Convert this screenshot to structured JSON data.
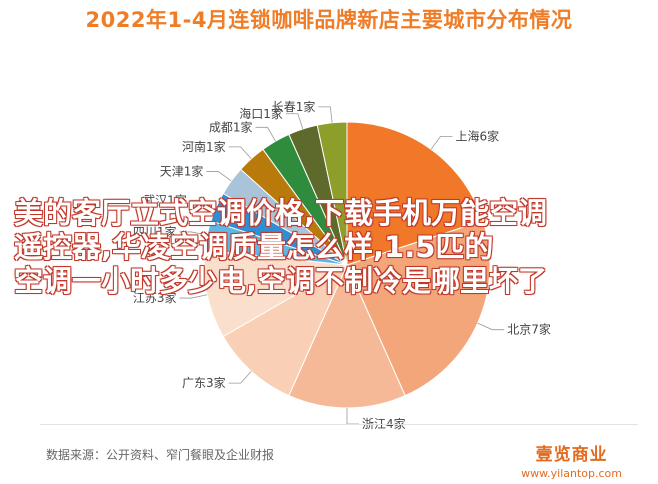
{
  "title": "2022年1-4月连锁咖啡品牌新店主要城市分布情况",
  "overlay_lines": [
    "美的客厅立式空调价格,下载手机万能空调",
    "遥控器,华凌空调质量怎么样,1.5匹的",
    "空调一小时多少电,空调不制冷是哪里坏了"
  ],
  "source": "数据来源：公开资料、窄门餐眼及企业财报",
  "brand": {
    "name": "壹览商业",
    "url": "www.yilantop.com"
  },
  "chart_data": {
    "type": "pie",
    "unit": "家",
    "slices": [
      {
        "label": "上海6家",
        "city": "上海",
        "value": 6,
        "color": "#f07828"
      },
      {
        "label": "北京7家",
        "city": "北京",
        "value": 7,
        "color": "#f3a679"
      },
      {
        "label": "浙江4家",
        "city": "浙江",
        "value": 4,
        "color": "#f6b998"
      },
      {
        "label": "广东3家",
        "city": "广东",
        "value": 3,
        "color": "#f9cfb6"
      },
      {
        "label": "江苏3家",
        "city": "江苏",
        "value": 3,
        "color": "#fbdfcd"
      },
      {
        "label": "四川1家",
        "city": "四川",
        "value": 1,
        "color": "#5fb7e6"
      },
      {
        "label": "武汉1家",
        "city": "武汉",
        "value": 1,
        "color": "#2e8fd6"
      },
      {
        "label": "天津1家",
        "city": "天津",
        "value": 1,
        "color": "#a9c3d9"
      },
      {
        "label": "河南1家",
        "city": "河南",
        "value": 1,
        "color": "#b77a0b"
      },
      {
        "label": "成都1家",
        "city": "成都",
        "value": 1,
        "color": "#2f8c3c"
      },
      {
        "label": "海口1家",
        "city": "海口",
        "value": 1,
        "color": "#5e6a2c"
      },
      {
        "label": "长春1家",
        "city": "长春",
        "value": 1,
        "color": "#8e9e2a"
      }
    ]
  }
}
